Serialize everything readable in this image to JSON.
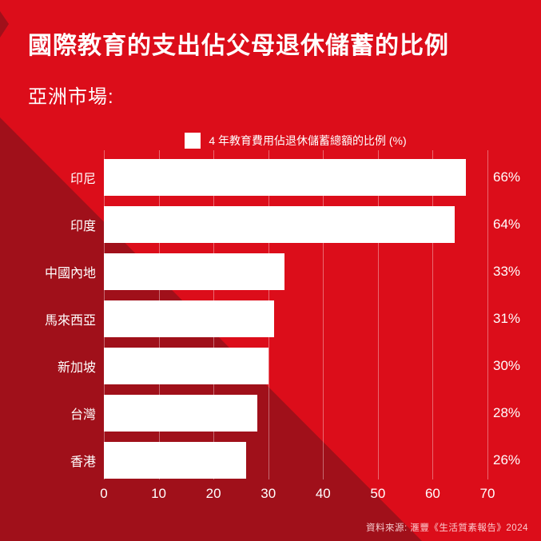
{
  "header": {
    "title": "國際教育的支出佔父母退休儲蓄的比例",
    "subtitle": "亞洲市場:"
  },
  "legend": {
    "swatch_color": "#FFFFFF",
    "label": "4 年教育費用佔退休儲蓄總額的比例 (%)"
  },
  "chart_data": {
    "type": "bar",
    "orientation": "horizontal",
    "title": "國際教育的支出佔父母退休儲蓄的比例",
    "subtitle": "亞洲市場:",
    "legend_label": "4 年教育費用佔退休儲蓄總額的比例 (%)",
    "legend_position": "top-center",
    "categories": [
      "印尼",
      "印度",
      "中國內地",
      "馬來西亞",
      "新加坡",
      "台灣",
      "香港"
    ],
    "values": [
      66,
      64,
      33,
      31,
      30,
      28,
      26
    ],
    "value_labels": [
      "66%",
      "64%",
      "33%",
      "31%",
      "30%",
      "28%",
      "26%"
    ],
    "xlim": [
      0,
      70
    ],
    "x_ticks": [
      0,
      10,
      20,
      30,
      40,
      50,
      60,
      70
    ],
    "grid": true,
    "bar_color": "#FFFFFF",
    "label_color": "#FFFFFF"
  },
  "footer": {
    "source": "資料來源: 滙豐《生活質素報告》2024"
  },
  "colors": {
    "background": "#DC0D1A",
    "background_dark_triangle": "#A0101A",
    "bar": "#FFFFFF",
    "text": "#FFFFFF",
    "gridline": "rgba(255,255,255,0.38)"
  }
}
